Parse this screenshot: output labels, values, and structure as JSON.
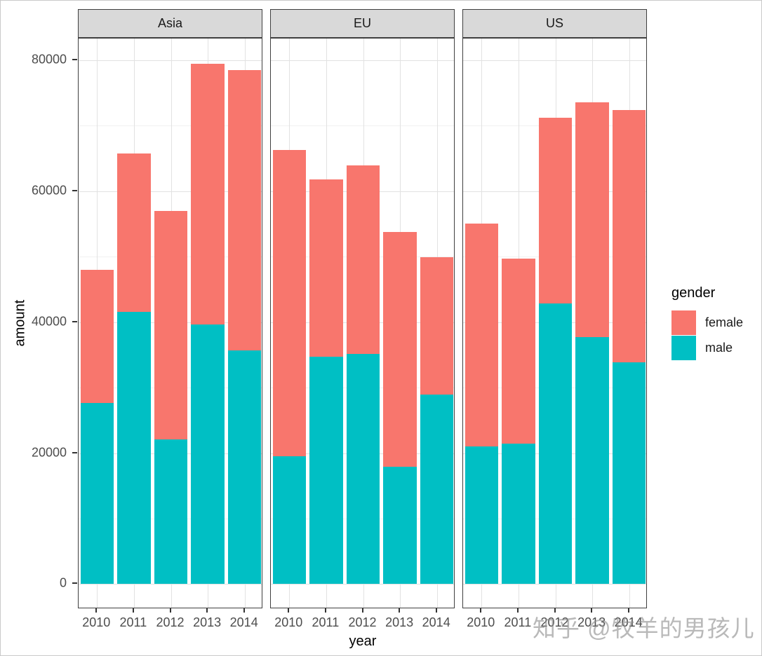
{
  "watermark": "知乎 @牧羊的男孩儿",
  "chart_data": {
    "type": "bar",
    "stacked": true,
    "xlabel": "year",
    "ylabel": "amount",
    "legend_title": "gender",
    "legend_position": "right",
    "grid": true,
    "categories": [
      "2010",
      "2011",
      "2012",
      "2013",
      "2014"
    ],
    "y_ticks": [
      0,
      20000,
      40000,
      60000,
      80000
    ],
    "y_minor_ticks": [
      10000,
      30000,
      50000,
      70000
    ],
    "ylim": [
      -3800,
      83300
    ],
    "facets": [
      {
        "label": "Asia",
        "series": [
          {
            "name": "male",
            "color": "#00BFC4",
            "values": [
              27700,
              41600,
              22100,
              39600,
              35700
            ]
          },
          {
            "name": "female",
            "color": "#F8766D",
            "values": [
              20300,
              24100,
              34900,
              39900,
              42800
            ]
          }
        ]
      },
      {
        "label": "EU",
        "series": [
          {
            "name": "male",
            "color": "#00BFC4",
            "values": [
              19500,
              34700,
              35200,
              17900,
              28900
            ]
          },
          {
            "name": "female",
            "color": "#F8766D",
            "values": [
              46800,
              27100,
              28700,
              35900,
              21000
            ]
          }
        ]
      },
      {
        "label": "US",
        "series": [
          {
            "name": "male",
            "color": "#00BFC4",
            "values": [
              21000,
              21500,
              42800,
              37700,
              33900
            ]
          },
          {
            "name": "female",
            "color": "#F8766D",
            "values": [
              34000,
              28200,
              28400,
              35900,
              38500
            ]
          }
        ]
      }
    ],
    "legend": [
      {
        "label": "female",
        "color": "#F8766D"
      },
      {
        "label": "male",
        "color": "#00BFC4"
      }
    ]
  }
}
